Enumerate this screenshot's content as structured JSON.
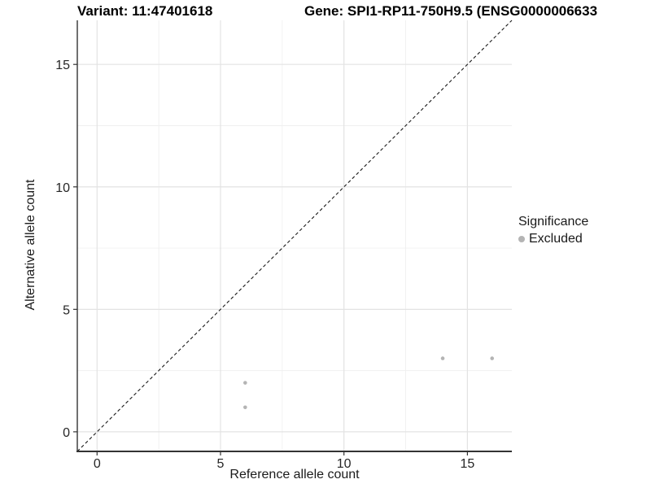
{
  "chart_data": {
    "type": "scatter",
    "title_left": "Variant: 11:47401618",
    "title_right": "Gene: SPI1-RP11-750H9.5 (ENSG0000006633",
    "xlabel": "Reference allele count",
    "ylabel": "Alternative allele count",
    "xlim": [
      -0.8,
      16.8
    ],
    "ylim": [
      -0.8,
      16.8
    ],
    "x_ticks": [
      0,
      5,
      10,
      15
    ],
    "y_ticks": [
      0,
      5,
      10,
      15
    ],
    "x_tick_labels": [
      "0",
      "5",
      "10",
      "15"
    ],
    "y_tick_labels": [
      "0",
      "5",
      "10",
      "15"
    ],
    "minor_ticks": [
      2.5,
      7.5,
      12.5
    ],
    "grid": true,
    "identity_line": true,
    "series": [
      {
        "name": "Excluded",
        "color": "#b4b4b4",
        "points": [
          [
            6,
            1
          ],
          [
            6,
            2
          ],
          [
            14,
            3
          ],
          [
            16,
            3
          ]
        ]
      }
    ],
    "legend": {
      "title": "Significance",
      "position": "right",
      "items": [
        {
          "label": "Excluded",
          "color": "#b4b4b4"
        }
      ]
    },
    "colors": {
      "background": "#ffffff",
      "grid_major": "#e3e3e3",
      "grid_minor": "#f0f0f0",
      "axis_line": "#333333",
      "tick_label": "#262626",
      "identity_line": "#1a1a1a"
    }
  }
}
